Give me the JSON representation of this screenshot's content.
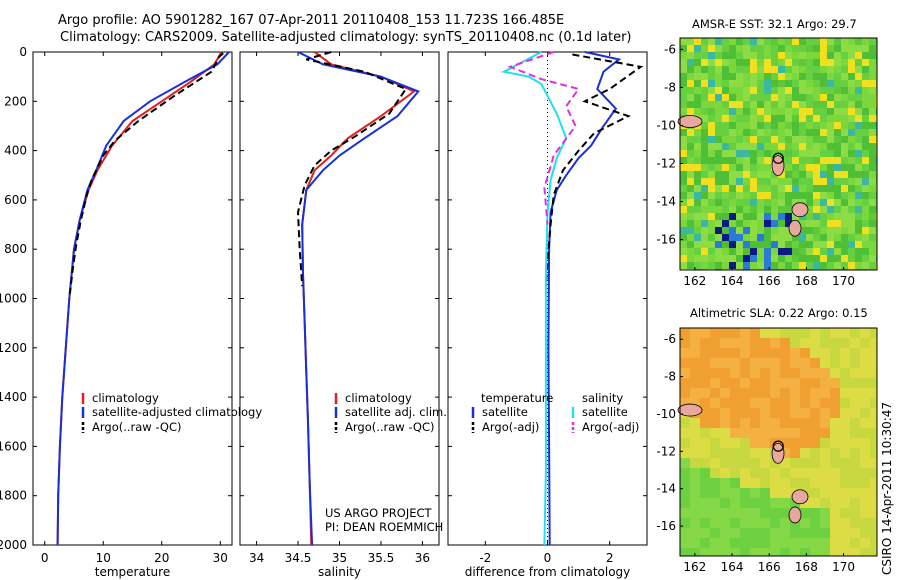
{
  "header": {
    "line1": "Argo profile: AO 5901282_167 07-Apr-2011 20110408_153 11.723S 166.485E",
    "line2": "Climatology: CARS2009. Satellite-adjusted climatology: synTS_20110408.nc (0.1d later)"
  },
  "credit": {
    "project": "US ARGO PROJECT",
    "pi": "PI: DEAN ROEMMICH",
    "stamp": "CSIRO 14-Apr-2011 10:30:47"
  },
  "colors": {
    "climatology": "#e0201c",
    "satellite": "#1830d8",
    "argo": "#000000",
    "salinity_satellite": "#20e0f0",
    "salinity_argo": "#e030e0"
  },
  "chart_data": [
    {
      "type": "line",
      "id": "temperature",
      "xlabel": "temperature",
      "ylim": [
        2000,
        0
      ],
      "xlim": [
        -2,
        32
      ],
      "xticks": [
        "0",
        "10",
        "20",
        "30"
      ],
      "yticks": [
        "0",
        "200",
        "400",
        "600",
        "800",
        "1000",
        "1200",
        "1400",
        "1600",
        "1800",
        "2000"
      ],
      "legend": [
        "climatology",
        "satellite-adjusted climatology",
        "Argo(..raw -QC)"
      ],
      "series": [
        {
          "name": "climatology",
          "style": "solid",
          "color": "#e0201c",
          "x": [
            30.2,
            29.0,
            25.0,
            20.0,
            15.0,
            11.5,
            9.0,
            7.5,
            6.0,
            5.0,
            4.2,
            3.6,
            3.0,
            2.6,
            2.3,
            2.2
          ],
          "y": [
            0,
            50,
            120,
            200,
            280,
            380,
            480,
            560,
            680,
            800,
            1000,
            1200,
            1400,
            1600,
            1800,
            2000
          ]
        },
        {
          "name": "satellite-adjusted climatology",
          "style": "solid",
          "color": "#1830d8",
          "x": [
            31.5,
            29.5,
            24.0,
            18.0,
            13.5,
            10.5,
            8.8,
            7.3,
            6.0,
            5.0,
            4.2,
            3.6,
            3.0,
            2.6,
            2.3,
            2.2
          ],
          "y": [
            0,
            50,
            120,
            200,
            280,
            380,
            480,
            560,
            680,
            800,
            1000,
            1200,
            1400,
            1600,
            1800,
            2000
          ]
        },
        {
          "name": "Argo(..raw -QC)",
          "style": "dash",
          "color": "#000000",
          "x": [
            30.5,
            29.8,
            28.5,
            22.0,
            16.0,
            12.0,
            10.0,
            9.0,
            8.0,
            7.2,
            6.2,
            5.4,
            4.8,
            4.3
          ],
          "y": [
            5,
            20,
            80,
            180,
            280,
            360,
            420,
            470,
            520,
            580,
            680,
            780,
            880,
            980
          ]
        }
      ]
    },
    {
      "type": "line",
      "id": "salinity",
      "xlabel": "salinity",
      "ylim": [
        2000,
        0
      ],
      "xlim": [
        33.8,
        36.2
      ],
      "xticks": [
        "34",
        "34.5",
        "35",
        "35.5",
        "36"
      ],
      "legend": [
        "climatology",
        "satellite adj. clim.",
        "Argo(..raw -QC)"
      ],
      "series": [
        {
          "name": "climatology",
          "style": "solid",
          "color": "#e0201c",
          "x": [
            34.7,
            34.9,
            35.5,
            35.9,
            35.5,
            35.1,
            34.9,
            34.7,
            34.6,
            34.55,
            34.56,
            34.58,
            34.6,
            34.62,
            34.64,
            34.66
          ],
          "y": [
            0,
            50,
            100,
            160,
            260,
            350,
            420,
            480,
            560,
            700,
            900,
            1100,
            1300,
            1500,
            1750,
            2000
          ]
        },
        {
          "name": "satellite adj. clim.",
          "style": "solid",
          "color": "#1830d8",
          "x": [
            34.5,
            34.8,
            35.5,
            35.95,
            35.7,
            35.3,
            35.0,
            34.8,
            34.6,
            34.55,
            34.56,
            34.58,
            34.6,
            34.62,
            34.64,
            34.67
          ],
          "y": [
            0,
            50,
            100,
            160,
            260,
            350,
            420,
            480,
            560,
            700,
            900,
            1100,
            1300,
            1500,
            1750,
            2000
          ]
        },
        {
          "name": "Argo(..raw -QC)",
          "style": "dash",
          "color": "#000000",
          "x": [
            34.9,
            34.6,
            35.3,
            35.8,
            35.6,
            35.2,
            34.9,
            34.7,
            34.58,
            34.5,
            34.52,
            34.55
          ],
          "y": [
            0,
            30,
            80,
            150,
            250,
            340,
            400,
            460,
            540,
            650,
            800,
            950
          ]
        }
      ]
    },
    {
      "type": "line",
      "id": "difference",
      "xlabel": "difference from climatology",
      "ylim": [
        2000,
        0
      ],
      "xlim": [
        -3.2,
        3.2
      ],
      "xticks": [
        "-2",
        "0",
        "2"
      ],
      "legend": [
        "temperature",
        "satellite",
        "Argo(-adj)",
        "salinity",
        "satellite",
        "Argo(-adj)"
      ],
      "series": [
        {
          "name": "temperature satellite",
          "style": "solid",
          "color": "#1830d8",
          "x": [
            1.2,
            2.3,
            1.8,
            1.6,
            2.2,
            1.8,
            1.4,
            1.0,
            0.6,
            0.3,
            0.1,
            0.05,
            0.03,
            0.05,
            0.07
          ],
          "y": [
            0,
            30,
            80,
            150,
            230,
            300,
            380,
            430,
            500,
            560,
            650,
            800,
            1200,
            1600,
            2000
          ]
        },
        {
          "name": "temperature Argo(-adj)",
          "style": "dash",
          "color": "#000000",
          "x": [
            0.8,
            3.0,
            2.0,
            1.2,
            2.6,
            1.5,
            1.0,
            0.5,
            0.2,
            0.1,
            0.0,
            -0.05
          ],
          "y": [
            10,
            60,
            150,
            200,
            260,
            330,
            400,
            480,
            580,
            700,
            850,
            950
          ]
        },
        {
          "name": "salinity satellite",
          "style": "solid",
          "color": "#20e0f0",
          "x": [
            -0.2,
            -1.4,
            -0.6,
            -0.2,
            0.3,
            0.6,
            0.3,
            0.1,
            0.0,
            -0.05,
            -0.05,
            -0.05,
            -0.1
          ],
          "y": [
            0,
            80,
            100,
            130,
            250,
            350,
            430,
            520,
            650,
            900,
            1300,
            1700,
            2000
          ]
        },
        {
          "name": "salinity Argo(-adj)",
          "style": "dash",
          "color": "#e030e0",
          "x": [
            0.2,
            -1.2,
            -0.2,
            1.0,
            0.6,
            0.9,
            0.2,
            -0.1,
            0.0
          ],
          "y": [
            0,
            60,
            110,
            150,
            220,
            300,
            420,
            550,
            700
          ]
        }
      ]
    },
    {
      "type": "heatmap",
      "id": "sst-map",
      "title": "AMSR-E SST: 32.1 Argo: 29.7",
      "xlim": [
        161.2,
        171.8
      ],
      "ylim": [
        -17.6,
        -5.4
      ],
      "xticks": [
        "162",
        "164",
        "166",
        "168",
        "170"
      ],
      "yticks": [
        "-6",
        "-8",
        "-10",
        "-12",
        "-14",
        "-16"
      ],
      "marker": {
        "lon": 166.485,
        "lat": -11.723
      }
    },
    {
      "type": "heatmap",
      "id": "sla-map",
      "title": "Altimetric SLA: 0.22 Argo: 0.15",
      "xlim": [
        161.2,
        171.8
      ],
      "ylim": [
        -17.6,
        -5.4
      ],
      "xticks": [
        "162",
        "164",
        "166",
        "168",
        "170"
      ],
      "yticks": [
        "-6",
        "-8",
        "-10",
        "-12",
        "-14",
        "-16"
      ],
      "marker": {
        "lon": 166.485,
        "lat": -11.723
      }
    }
  ]
}
